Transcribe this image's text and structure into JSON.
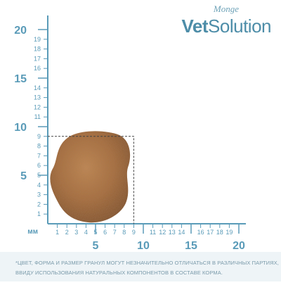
{
  "brand": {
    "small": "Monge",
    "big_bold": "Vet",
    "big_light": "Solution"
  },
  "ruler": {
    "unit": "мм",
    "y_small_ticks": [
      "1",
      "2",
      "3",
      "4",
      "5",
      "6",
      "7",
      "8",
      "9",
      "11",
      "12",
      "13",
      "14",
      "16",
      "17",
      "18",
      "19"
    ],
    "y_small_values": [
      1,
      2,
      3,
      4,
      5,
      6,
      7,
      8,
      9,
      11,
      12,
      13,
      14,
      16,
      17,
      18,
      19
    ],
    "y_big_ticks": [
      "5",
      "10",
      "15",
      "20"
    ],
    "y_big_values": [
      5,
      10,
      15,
      20
    ],
    "x_small_ticks": [
      "1",
      "2",
      "3",
      "4",
      "5",
      "6",
      "7",
      "8",
      "9",
      "11",
      "12",
      "13",
      "14",
      "16",
      "17",
      "18",
      "19"
    ],
    "x_small_values": [
      1,
      2,
      3,
      4,
      5,
      6,
      7,
      8,
      9,
      11,
      12,
      13,
      14,
      16,
      17,
      18,
      19
    ],
    "x_big_ticks": [
      "5",
      "10",
      "15",
      "20"
    ],
    "x_big_values": [
      5,
      10,
      15,
      20
    ],
    "kibble_box_mm": 9,
    "color": "#5a9bb8"
  },
  "footer": {
    "line1": "*ЦВЕТ, ФОРМА И РАЗМЕР ГРАНУЛ МОГУТ НЕЗНАЧИТЕЛЬНО ОТЛИЧАТЬСЯ В РАЗЛИЧНЫХ ПАРТИЯХ,",
    "line2": "ВВИДУ ИСПОЛЬЗОВАНИЯ НАТУРАЛЬНЫХ КОМПОНЕНТОВ В СОСТАВЕ КОРМА."
  }
}
